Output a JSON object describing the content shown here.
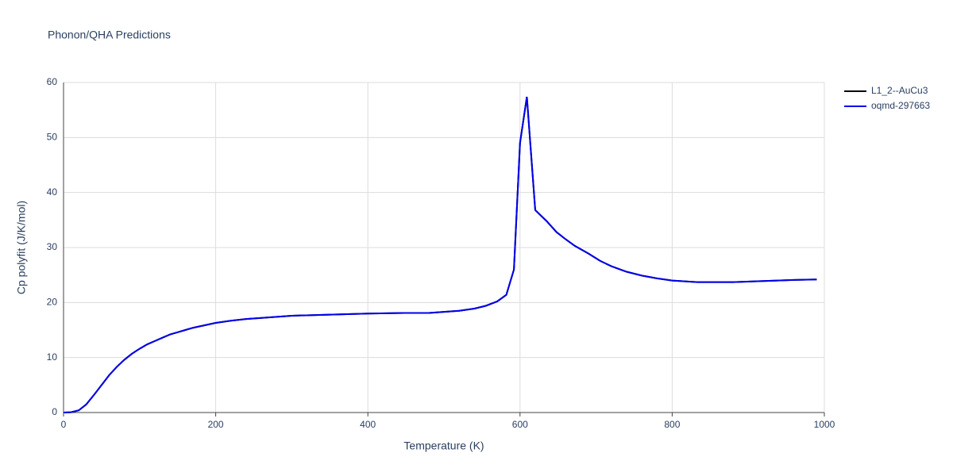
{
  "chart_data": {
    "type": "line",
    "title": "Phonon/QHA Predictions",
    "x_label": "Temperature (K)",
    "y_label": "Cp polyfit (J/K/mol)",
    "xlim": [
      0,
      1000
    ],
    "ylim": [
      0,
      60
    ],
    "xticks": [
      0,
      200,
      400,
      600,
      800,
      1000
    ],
    "yticks": [
      0,
      10,
      20,
      30,
      40,
      50,
      60
    ],
    "grid": true,
    "legend": "right",
    "x": [
      0,
      10,
      20,
      30,
      40,
      50,
      60,
      70,
      80,
      90,
      100,
      110,
      120,
      130,
      140,
      150,
      160,
      170,
      180,
      200,
      220,
      240,
      260,
      300,
      350,
      400,
      450,
      480,
      500,
      520,
      540,
      555,
      570,
      582,
      592,
      600,
      609,
      620,
      635,
      648,
      660,
      672,
      690,
      705,
      720,
      740,
      760,
      780,
      800,
      833,
      880,
      920,
      960,
      990
    ],
    "series": [
      {
        "name": "L1_2--AuCu3",
        "color": "#000000",
        "values": [
          0,
          0.05,
          0.4,
          1.5,
          3.2,
          5,
          6.8,
          8.3,
          9.6,
          10.7,
          11.6,
          12.4,
          13.0,
          13.6,
          14.2,
          14.6,
          15.0,
          15.4,
          15.7,
          16.3,
          16.7,
          17.0,
          17.2,
          17.6,
          17.8,
          18.0,
          18.1,
          18.1,
          18.3,
          18.5,
          18.9,
          19.4,
          20.2,
          21.4,
          26.0,
          49,
          57.4,
          36.8,
          34.8,
          32.8,
          31.5,
          30.3,
          28.9,
          27.6,
          26.6,
          25.6,
          24.9,
          24.4,
          24.0,
          23.7,
          23.7,
          23.9,
          24.1,
          24.2
        ]
      },
      {
        "name": "oqmd-297663",
        "color": "#0000ee",
        "values": [
          0,
          0.05,
          0.4,
          1.5,
          3.2,
          5,
          6.8,
          8.3,
          9.6,
          10.7,
          11.6,
          12.4,
          13.0,
          13.6,
          14.2,
          14.6,
          15.0,
          15.4,
          15.7,
          16.3,
          16.7,
          17.0,
          17.2,
          17.6,
          17.8,
          18.0,
          18.1,
          18.1,
          18.3,
          18.5,
          18.9,
          19.4,
          20.2,
          21.4,
          26.0,
          49,
          57.4,
          36.8,
          34.8,
          32.8,
          31.5,
          30.3,
          28.9,
          27.6,
          26.6,
          25.6,
          24.9,
          24.4,
          24.0,
          23.7,
          23.7,
          23.9,
          24.1,
          24.2
        ]
      }
    ]
  }
}
